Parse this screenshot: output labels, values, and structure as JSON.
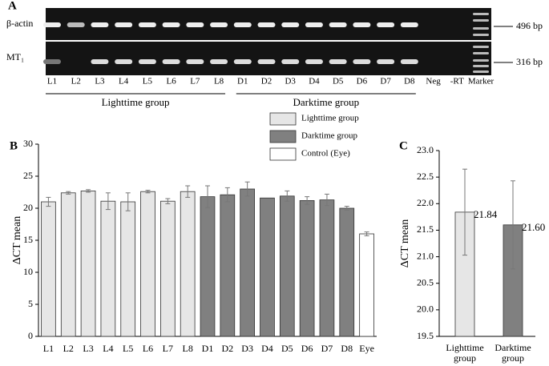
{
  "panel_a": {
    "label": "A",
    "rows": [
      "β-actin",
      "MT₁"
    ],
    "band_sizes": [
      "496 bp",
      "316 bp"
    ],
    "lanes": [
      "L1",
      "L2",
      "L3",
      "L4",
      "L5",
      "L6",
      "L7",
      "L8",
      "D1",
      "D2",
      "D3",
      "D4",
      "D5",
      "D6",
      "D7",
      "D8",
      "Neg",
      "-RT",
      "Marker"
    ],
    "groups": [
      "Lighttime group",
      "Darktime group"
    ]
  },
  "chart_data": [
    {
      "type": "bar",
      "label": "B",
      "ylabel": "ΔCT mean",
      "categories": [
        "L1",
        "L2",
        "L3",
        "L4",
        "L5",
        "L6",
        "L7",
        "L8",
        "D1",
        "D2",
        "D3",
        "D4",
        "D5",
        "D6",
        "D7",
        "D8",
        "Eye"
      ],
      "series": [
        {
          "name": "Lighttime group",
          "color": "#e6e6e6",
          "values": [
            21.0,
            22.4,
            22.7,
            21.1,
            21.0,
            22.6,
            21.1,
            22.6,
            null,
            null,
            null,
            null,
            null,
            null,
            null,
            null,
            null
          ],
          "errors": [
            0.7,
            0.2,
            0.2,
            1.3,
            1.4,
            0.2,
            0.4,
            0.9,
            null,
            null,
            null,
            null,
            null,
            null,
            null,
            null,
            null
          ]
        },
        {
          "name": "Darktime group",
          "color": "#808080",
          "values": [
            null,
            null,
            null,
            null,
            null,
            null,
            null,
            null,
            21.8,
            22.1,
            23.0,
            21.6,
            21.9,
            21.2,
            21.3,
            20.0,
            null
          ],
          "errors": [
            null,
            null,
            null,
            null,
            null,
            null,
            null,
            null,
            1.7,
            1.1,
            1.1,
            null,
            0.8,
            0.6,
            0.9,
            0.3,
            null
          ]
        },
        {
          "name": "Control (Eye)",
          "color": "#ffffff",
          "values": [
            null,
            null,
            null,
            null,
            null,
            null,
            null,
            null,
            null,
            null,
            null,
            null,
            null,
            null,
            null,
            null,
            16.0
          ],
          "errors": [
            null,
            null,
            null,
            null,
            null,
            null,
            null,
            null,
            null,
            null,
            null,
            null,
            null,
            null,
            null,
            null,
            0.3
          ]
        }
      ],
      "ylim": [
        0,
        30
      ],
      "yticks": [
        0,
        5,
        10,
        15,
        20,
        25,
        30
      ]
    },
    {
      "type": "bar",
      "label": "C",
      "ylabel": "ΔCT mean",
      "categories": [
        "Lighttime group",
        "Darktime group"
      ],
      "values": [
        21.84,
        21.6
      ],
      "value_labels": [
        "21.84",
        "21.60"
      ],
      "errors": [
        0.81,
        0.83
      ],
      "colors": [
        "#e6e6e6",
        "#808080"
      ],
      "ylim": [
        19.5,
        23.0
      ],
      "yticks": [
        19.5,
        {
          "value": 20.0,
          "label": "20.0"
        },
        20.5,
        {
          "value": 21.0,
          "label": "21.0"
        },
        21.5,
        {
          "value": 22.0,
          "label": "22.0"
        },
        22.5,
        {
          "value": 23.0,
          "label": "23.0"
        }
      ]
    }
  ]
}
